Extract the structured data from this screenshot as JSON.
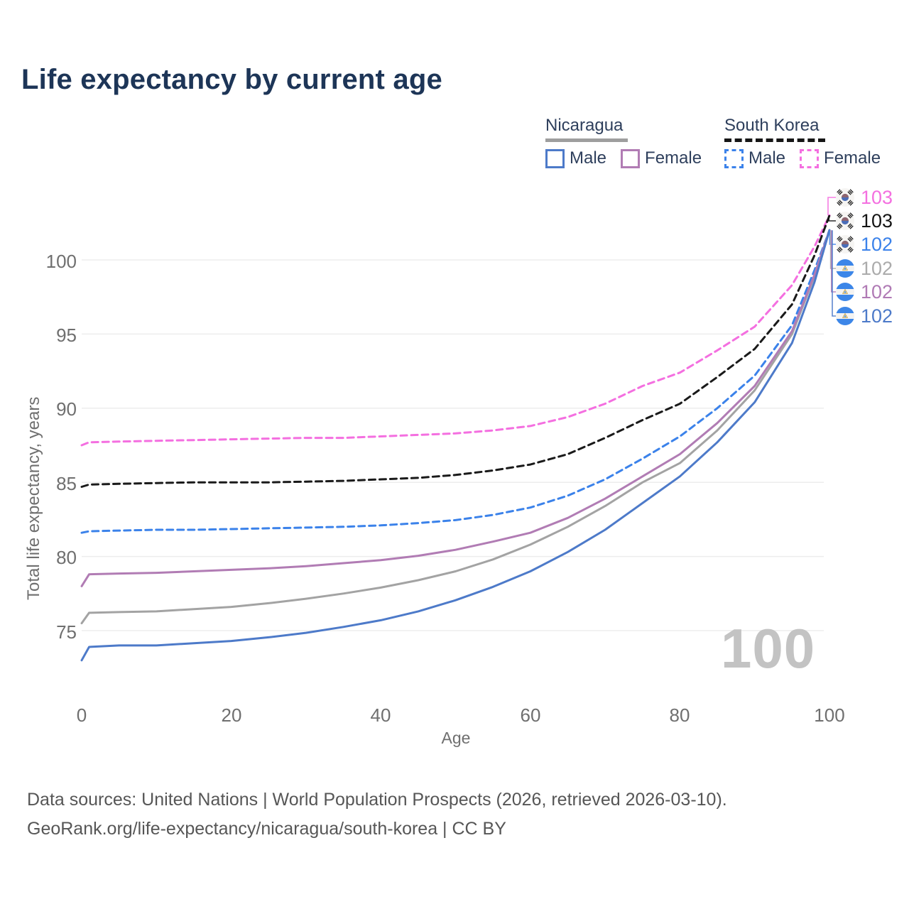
{
  "title": "Life expectancy by current age",
  "legend": {
    "groups": [
      {
        "country": "Nicaragua",
        "line_style": "solid",
        "sample_color": "#9e9e9e",
        "items": [
          {
            "label": "Male",
            "color": "#4d7ac9"
          },
          {
            "label": "Female",
            "color": "#b17cb4"
          }
        ]
      },
      {
        "country": "South Korea",
        "line_style": "dashed",
        "sample_color": "#161616",
        "items": [
          {
            "label": "Male",
            "color": "#3b82ea"
          },
          {
            "label": "Female",
            "color": "#f46fe0"
          }
        ]
      }
    ]
  },
  "axes": {
    "y_title": "Total life expectancy, years",
    "x_title": "Age",
    "y_tick_labels": [
      "75",
      "80",
      "85",
      "90",
      "95",
      "100"
    ],
    "x_tick_labels": [
      "0",
      "20",
      "40",
      "60",
      "80",
      "100"
    ]
  },
  "watermark": "100",
  "footer": {
    "line1": "Data sources: United Nations | World Population Prospects (2026, retrieved 2026-03-10).",
    "line2": "GeoRank.org/life-expectancy/nicaragua/south-korea | CC BY"
  },
  "chart_data": {
    "type": "line",
    "title": "Life expectancy by current age",
    "xlabel": "Age",
    "ylabel": "Total life expectancy, years",
    "xlim": [
      0,
      100
    ],
    "y_axis_range_shown": [
      75,
      100
    ],
    "x_ticks": [
      0,
      20,
      40,
      60,
      80,
      100
    ],
    "y_ticks": [
      75,
      80,
      85,
      90,
      95,
      100
    ],
    "grid": "horizontal-only",
    "legend_position": "top-right",
    "x": [
      0,
      1,
      5,
      10,
      15,
      20,
      25,
      30,
      35,
      40,
      45,
      50,
      55,
      60,
      65,
      70,
      75,
      80,
      85,
      90,
      95,
      98,
      100
    ],
    "series": [
      {
        "name": "South Korea Female",
        "country": "South Korea",
        "sex": "Female",
        "line_style": "dashed",
        "color": "#f46fe0",
        "end_value": 103,
        "values": [
          87.5,
          87.7,
          87.75,
          87.8,
          87.85,
          87.9,
          87.95,
          88.0,
          88.0,
          88.1,
          88.2,
          88.3,
          88.5,
          88.8,
          89.4,
          90.3,
          91.5,
          92.4,
          93.9,
          95.5,
          98.3,
          100.9,
          103.0
        ]
      },
      {
        "name": "South Korea Total",
        "country": "South Korea",
        "sex": "Both",
        "line_style": "dashed",
        "color": "#1a1a1a",
        "end_value": 103,
        "values": [
          84.7,
          84.85,
          84.9,
          84.95,
          85.0,
          85.0,
          85.0,
          85.05,
          85.1,
          85.2,
          85.3,
          85.5,
          85.8,
          86.2,
          86.9,
          88.0,
          89.2,
          90.3,
          92.1,
          94.0,
          97.0,
          100.3,
          103.0
        ]
      },
      {
        "name": "South Korea Male",
        "country": "South Korea",
        "sex": "Male",
        "line_style": "dashed",
        "color": "#3b82ea",
        "end_value": 102,
        "values": [
          81.6,
          81.7,
          81.75,
          81.8,
          81.8,
          81.85,
          81.9,
          81.95,
          82.0,
          82.1,
          82.25,
          82.45,
          82.8,
          83.3,
          84.1,
          85.2,
          86.6,
          88.1,
          90.0,
          92.2,
          95.6,
          99.3,
          102.0
        ]
      },
      {
        "name": "Nicaragua Total",
        "country": "Nicaragua",
        "sex": "Both",
        "line_style": "solid",
        "color": "#a3a3a3",
        "end_value": 102,
        "values": [
          75.5,
          76.2,
          76.25,
          76.3,
          76.45,
          76.6,
          76.85,
          77.15,
          77.5,
          77.9,
          78.4,
          79.0,
          79.8,
          80.8,
          82.0,
          83.4,
          85.0,
          86.3,
          88.5,
          91.2,
          95.0,
          98.9,
          102.0
        ]
      },
      {
        "name": "Nicaragua Female",
        "country": "Nicaragua",
        "sex": "Female",
        "line_style": "solid",
        "color": "#b17cb4",
        "end_value": 102,
        "values": [
          78.0,
          78.8,
          78.85,
          78.9,
          79.0,
          79.1,
          79.2,
          79.35,
          79.55,
          79.75,
          80.05,
          80.45,
          81.0,
          81.6,
          82.6,
          83.9,
          85.4,
          86.9,
          89.0,
          91.5,
          95.2,
          99.0,
          102.0
        ]
      },
      {
        "name": "Nicaragua Male",
        "country": "Nicaragua",
        "sex": "Male",
        "line_style": "solid",
        "color": "#4d7ac9",
        "end_value": 102,
        "values": [
          73.0,
          73.9,
          74.0,
          74.0,
          74.15,
          74.3,
          74.55,
          74.85,
          75.25,
          75.7,
          76.3,
          77.05,
          77.95,
          79.0,
          80.3,
          81.8,
          83.6,
          85.4,
          87.7,
          90.4,
          94.4,
          98.5,
          102.0
        ]
      }
    ],
    "end_labels": [
      {
        "value": "103",
        "flag": "south-korea",
        "color": "#f46fe0",
        "series": "South Korea Female"
      },
      {
        "value": "103",
        "flag": "south-korea",
        "color": "#141414",
        "series": "South Korea Total"
      },
      {
        "value": "102",
        "flag": "south-korea",
        "color": "#3b82ea",
        "series": "South Korea Male"
      },
      {
        "value": "102",
        "flag": "nicaragua",
        "color": "#ababab",
        "series": "Nicaragua Total"
      },
      {
        "value": "102",
        "flag": "nicaragua",
        "color": "#b07ab5",
        "series": "Nicaragua Female"
      },
      {
        "value": "102",
        "flag": "nicaragua",
        "color": "#4d7ac9",
        "series": "Nicaragua Male"
      }
    ],
    "watermark": "100",
    "colors": {
      "grid": "#ededed",
      "title": "#1d3557",
      "axis_text": "#6f6f6f",
      "footer_text": "#565656",
      "watermark": "#c3c3c3"
    }
  }
}
